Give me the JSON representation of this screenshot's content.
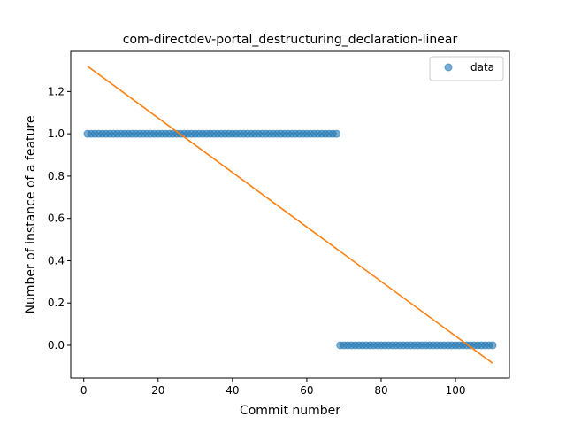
{
  "chart_data": {
    "type": "scatter",
    "title": "com-directdev-portal_destructuring_declaration-linear",
    "xlabel": "Commit number",
    "ylabel": "Number of instance of a feature",
    "xlim": [
      -3.5,
      114.5
    ],
    "ylim": [
      -0.155,
      1.39
    ],
    "x_ticks": [
      0,
      20,
      40,
      60,
      80,
      100
    ],
    "y_ticks": [
      0.0,
      0.2,
      0.4,
      0.6,
      0.8,
      1.0,
      1.2
    ],
    "grid": false,
    "legend_position": "top-right",
    "series": [
      {
        "name": "data",
        "kind": "scatter",
        "color": "#1f77b4",
        "points": [
          {
            "x_from": 1,
            "x_to": 68,
            "y": 1.0
          },
          {
            "x_from": 69,
            "x_to": 110,
            "y": 0.0
          }
        ]
      },
      {
        "name": "",
        "kind": "line",
        "color": "#ff7f0e",
        "x": [
          1,
          110
        ],
        "y": [
          1.32,
          -0.085
        ]
      }
    ]
  }
}
